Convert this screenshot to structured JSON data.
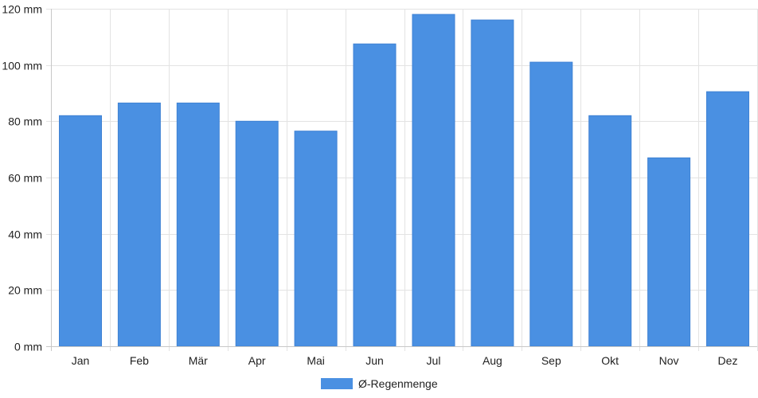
{
  "chart_data": {
    "type": "bar",
    "categories": [
      "Jan",
      "Feb",
      "Mär",
      "Apr",
      "Mai",
      "Jun",
      "Jul",
      "Aug",
      "Sep",
      "Okt",
      "Nov",
      "Dez"
    ],
    "series": [
      {
        "name": "Ø-Regenmenge",
        "color": "#4a90e2",
        "values": [
          82,
          86.5,
          86.5,
          80,
          76.5,
          107.5,
          118,
          116,
          101,
          82,
          67,
          90.5
        ]
      }
    ],
    "y_ticks": [
      "0 mm",
      "20 mm",
      "40 mm",
      "60 mm",
      "80 mm",
      "100 mm",
      "120 mm"
    ],
    "ylim": [
      0,
      120
    ],
    "y_unit": "mm",
    "grid": true,
    "legend_position": "bottom"
  }
}
